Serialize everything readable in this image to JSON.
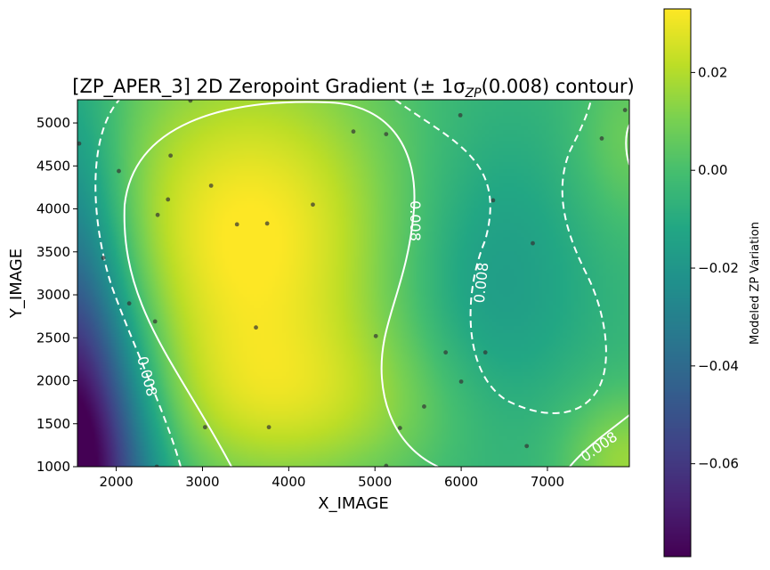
{
  "chart_data": {
    "type": "heatmap",
    "title_prefix": "[ZP_APER_3] 2D Zeropoint Gradient (± 1σ",
    "title_subscript": "ZP",
    "title_suffix": "(0.008) contour)",
    "xlabel": "X_IMAGE",
    "ylabel": "Y_IMAGE",
    "xlim": [
      1550,
      7950
    ],
    "ylim": [
      1000,
      5270
    ],
    "x_ticks": [
      2000,
      3000,
      4000,
      5000,
      6000,
      7000
    ],
    "y_ticks": [
      1000,
      1500,
      2000,
      2500,
      3000,
      3500,
      4000,
      4500,
      5000
    ],
    "colorbar": {
      "label": "Modeled ZP Variation",
      "range": [
        -0.079,
        0.033
      ],
      "ticks": [
        0.02,
        0.0,
        -0.02,
        -0.04,
        -0.06
      ],
      "tick_labels": [
        "0.02",
        "0.00",
        "−0.02",
        "−0.04",
        "−0.06"
      ],
      "colormap": "viridis"
    },
    "contour_levels": [
      -0.008,
      0.008
    ],
    "contour_label": "0.008",
    "contour_color": "#ffffff",
    "points": [
      [
        1570,
        4760
      ],
      [
        1850,
        3430
      ],
      [
        2030,
        4440
      ],
      [
        2150,
        2900
      ],
      [
        2470,
        1000
      ],
      [
        2450,
        2690
      ],
      [
        2480,
        3930
      ],
      [
        2600,
        4110
      ],
      [
        2630,
        4620
      ],
      [
        2860,
        5260
      ],
      [
        3030,
        1460
      ],
      [
        3100,
        4270
      ],
      [
        3400,
        3820
      ],
      [
        3620,
        2620
      ],
      [
        3750,
        3830
      ],
      [
        3770,
        1460
      ],
      [
        4280,
        4050
      ],
      [
        4750,
        4900
      ],
      [
        5010,
        2520
      ],
      [
        5130,
        4870
      ],
      [
        5130,
        1010
      ],
      [
        5290,
        1450
      ],
      [
        5570,
        1700
      ],
      [
        5820,
        2330
      ],
      [
        5990,
        5090
      ],
      [
        6000,
        1990
      ],
      [
        6280,
        2330
      ],
      [
        6370,
        4100
      ],
      [
        6760,
        1240
      ],
      [
        6830,
        3600
      ],
      [
        7630,
        4820
      ],
      [
        7900,
        5150
      ]
    ]
  }
}
